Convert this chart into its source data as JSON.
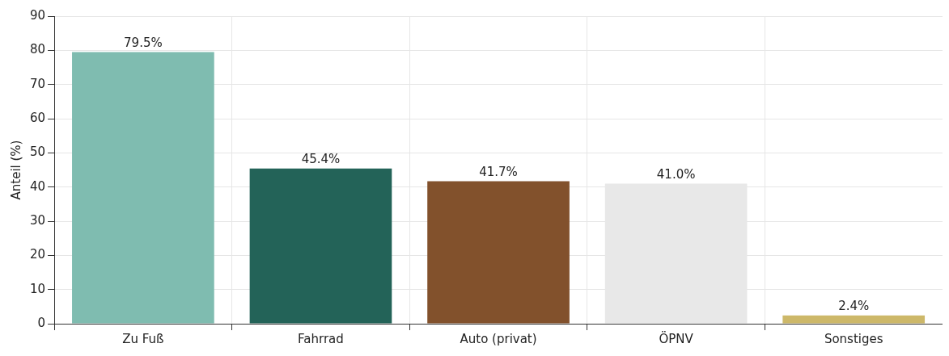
{
  "chart_data": {
    "type": "bar",
    "ylabel": "Anteil (%)",
    "categories": [
      "Zu Fuß",
      "Fahrrad",
      "Auto (privat)",
      "ÖPNV",
      "Sonstiges"
    ],
    "values": [
      79.5,
      45.4,
      41.7,
      41.0,
      2.4
    ],
    "colors": [
      "#7fbcb0",
      "#236358",
      "#82512c",
      "#e8e8e8",
      "#cdb869"
    ],
    "value_labels": [
      "79.5%",
      "45.4%",
      "41.7%",
      "41.0%",
      "2.4%"
    ],
    "ylim": [
      0,
      90
    ],
    "yticks": [
      0,
      10,
      20,
      30,
      40,
      50,
      60,
      70,
      80,
      90
    ],
    "grid": true,
    "legend": false
  }
}
